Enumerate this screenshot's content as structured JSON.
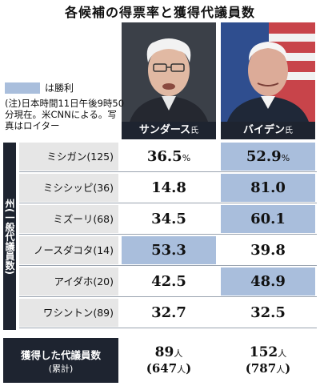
{
  "title": "各候補の得票率と獲得代議員数",
  "legend": {
    "label": "は勝利",
    "color": "#a9bedc"
  },
  "note": "(注)日本時間11日午後9時50分現在。米CNNによる。写真はロイター",
  "candidates": [
    {
      "name": "サンダース",
      "suffix": "氏"
    },
    {
      "name": "バイデン",
      "suffix": "氏"
    }
  ],
  "side_label": "州(一般代議員数)",
  "percent_unit": "%",
  "rows": [
    {
      "state": "ミシガン(125)",
      "sanders": "36.5",
      "biden": "52.9",
      "winner": "biden"
    },
    {
      "state": "ミシシッピ(36)",
      "sanders": "14.8",
      "biden": "81.0",
      "winner": "biden"
    },
    {
      "state": "ミズーリ(68)",
      "sanders": "34.5",
      "biden": "60.1",
      "winner": "biden"
    },
    {
      "state": "ノースダコタ(14)",
      "sanders": "53.3",
      "biden": "39.8",
      "winner": "sanders"
    },
    {
      "state": "アイダホ(20)",
      "sanders": "42.5",
      "biden": "48.9",
      "winner": "biden"
    },
    {
      "state": "ワシントン(89)",
      "sanders": "32.7",
      "biden": "32.5",
      "winner": "none"
    }
  ],
  "totals": {
    "label": "獲得した代議員数",
    "sub": "(累計)",
    "unit": "人",
    "sanders": {
      "value": "89",
      "cumulative": "647"
    },
    "biden": {
      "value": "152",
      "cumulative": "787"
    }
  },
  "colors": {
    "win": "#a9bedc",
    "header": "#1e2430",
    "state_bg": "#e6e6e6"
  }
}
